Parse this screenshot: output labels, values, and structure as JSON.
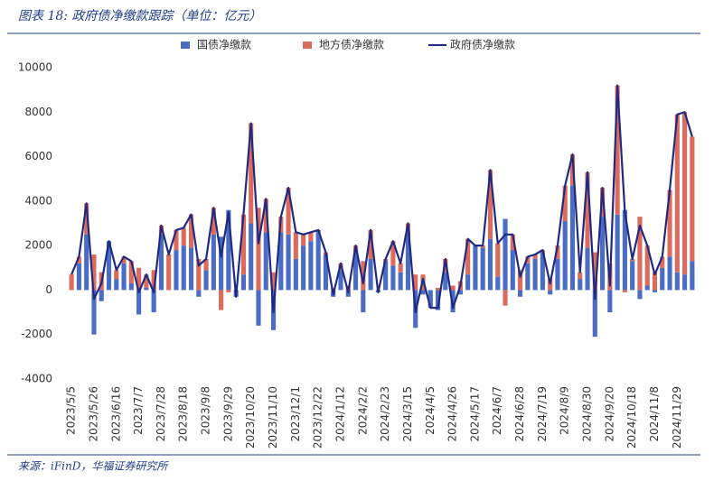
{
  "chart_data": {
    "type": "stacked-bar-line",
    "title": "图表 18:  政府债净缴款跟踪（单位：亿元）",
    "source": "来源：iFinD，华福证券研究所",
    "categories": [
      "2023/5/5",
      null,
      null,
      "2023/5/26",
      null,
      null,
      "2023/6/16",
      null,
      null,
      "2023/7/7",
      null,
      null,
      "2023/7/28",
      null,
      null,
      "2023/8/18",
      null,
      null,
      "2023/9/8",
      null,
      null,
      "2023/9/29",
      null,
      null,
      "2023/10/20",
      null,
      null,
      "2023/11/10",
      null,
      null,
      "2023/12/1",
      null,
      null,
      "2023/12/22",
      null,
      null,
      "2024/1/12",
      null,
      null,
      "2024/2/2",
      null,
      null,
      "2024/2/23",
      null,
      null,
      "2024/3/15",
      null,
      null,
      "2024/4/5",
      null,
      null,
      "2024/4/26",
      null,
      null,
      "2024/5/17",
      null,
      null,
      "2024/6/7",
      null,
      null,
      "2024/6/28",
      null,
      null,
      "2024/7/19",
      null,
      null,
      "2024/8/9",
      null,
      null,
      "2024/8/30",
      null,
      null,
      "2024/9/20",
      null,
      null,
      "2024/10/18",
      null,
      null,
      "2024/11/8",
      null,
      null,
      "2024/11/29",
      null,
      null
    ],
    "series": [
      {
        "name": "国债净缴款",
        "kind": "bar",
        "color": "#4a6cc4",
        "values": [
          0,
          1200,
          2500,
          -2000,
          -500,
          2200,
          500,
          1200,
          300,
          -1100,
          100,
          -1000,
          2500,
          0,
          1800,
          2000,
          1900,
          -300,
          900,
          2500,
          2400,
          3600,
          -300,
          700,
          3000,
          -1600,
          2600,
          -1800,
          2600,
          2500,
          1400,
          2000,
          2200,
          2700,
          1600,
          -300,
          900,
          -300,
          1700,
          -1000,
          1400,
          -100,
          1300,
          1100,
          800,
          2600,
          -1700,
          -200,
          -800,
          -900,
          800,
          -1000,
          -200,
          700,
          2000,
          1900,
          2300,
          600,
          3200,
          1800,
          -300,
          1200,
          1400,
          1700,
          -200,
          1400,
          3100,
          4700,
          500,
          1900,
          -2100,
          3300,
          -1000,
          3400,
          3600,
          1300,
          -400,
          200,
          -100,
          1000,
          1500,
          800,
          700,
          1300
        ]
      },
      {
        "name": "地方债净缴款",
        "kind": "bar",
        "color": "#dc6b5e",
        "values": [
          700,
          300,
          1400,
          1600,
          800,
          0,
          400,
          300,
          1000,
          1000,
          600,
          900,
          400,
          1600,
          900,
          800,
          1500,
          1400,
          500,
          1200,
          -900,
          -100,
          0,
          2700,
          4500,
          3700,
          1500,
          800,
          700,
          2100,
          1200,
          500,
          400,
          0,
          100,
          100,
          300,
          200,
          300,
          1300,
          1300,
          0,
          100,
          1100,
          400,
          400,
          700,
          700,
          0,
          100,
          600,
          200,
          400,
          1600,
          0,
          100,
          3100,
          1500,
          -700,
          700,
          900,
          300,
          200,
          100,
          500,
          600,
          1600,
          1400,
          300,
          3400,
          1700,
          1300,
          1200,
          5800,
          -100,
          100,
          3300,
          1800,
          800,
          500,
          3000,
          7100,
          7300,
          5600
        ]
      },
      {
        "name": "政府债净缴款",
        "kind": "line",
        "color": "#1f2a80",
        "values": [
          700,
          1500,
          3900,
          -400,
          300,
          2200,
          900,
          1500,
          1300,
          -100,
          700,
          -100,
          2900,
          1600,
          2700,
          2800,
          3400,
          1100,
          1400,
          3700,
          1500,
          3500,
          -300,
          3400,
          7500,
          2100,
          4100,
          -1000,
          3300,
          4600,
          2600,
          2500,
          2600,
          2700,
          1700,
          -200,
          1200,
          -100,
          2000,
          300,
          2700,
          -100,
          1400,
          2200,
          1200,
          3000,
          -1000,
          500,
          -800,
          -800,
          1400,
          -800,
          200,
          2300,
          2000,
          2000,
          5400,
          2100,
          2500,
          2500,
          600,
          1500,
          1600,
          1800,
          300,
          2000,
          4700,
          6100,
          800,
          5300,
          -400,
          4600,
          200,
          9200,
          3500,
          1400,
          2900,
          2000,
          700,
          1500,
          4500,
          7900,
          8000,
          6900
        ]
      }
    ],
    "ylim": [
      -4000,
      10000
    ],
    "yticks": [
      -4000,
      -2000,
      0,
      2000,
      4000,
      6000,
      8000,
      10000
    ],
    "legend": "top"
  }
}
